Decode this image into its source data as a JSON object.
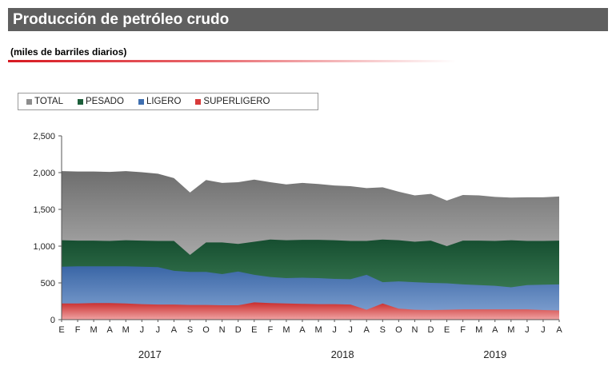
{
  "header": {
    "title": "Producción de petróleo crudo",
    "subtitle": "(miles de barriles diarios)"
  },
  "colors": {
    "total": "#8d8d8d",
    "pesado": "#1c5f3a",
    "ligero": "#3f6fb0",
    "superligero": "#d83a3a"
  },
  "chart_data": {
    "type": "area",
    "title": "Producción de petróleo crudo",
    "ylabel": "",
    "xlabel": "",
    "ylim": [
      0,
      2500
    ],
    "yticks": [
      "0",
      "500",
      "1,000",
      "1,500",
      "2,000",
      "2,500"
    ],
    "categories": [
      "E",
      "F",
      "M",
      "A",
      "M",
      "J",
      "J",
      "A",
      "S",
      "O",
      "N",
      "D",
      "E",
      "F",
      "M",
      "A",
      "M",
      "J",
      "J",
      "A",
      "S",
      "O",
      "N",
      "D",
      "E",
      "F",
      "M",
      "A",
      "M",
      "J",
      "J",
      "A"
    ],
    "years": [
      {
        "label": "2017",
        "center_index": 5.5
      },
      {
        "label": "2018",
        "center_index": 17.5
      },
      {
        "label": "2019",
        "center_index": 27
      }
    ],
    "grid": true,
    "legend_position": "top-left",
    "series": [
      {
        "name": "TOTAL",
        "values": [
          2020,
          2015,
          2015,
          2010,
          2020,
          2005,
          1985,
          1925,
          1730,
          1900,
          1860,
          1870,
          1905,
          1870,
          1840,
          1860,
          1845,
          1825,
          1815,
          1790,
          1800,
          1740,
          1690,
          1710,
          1620,
          1695,
          1690,
          1670,
          1660,
          1665,
          1665,
          1675
        ]
      },
      {
        "name": "PESADO",
        "values": [
          1080,
          1075,
          1075,
          1070,
          1080,
          1075,
          1070,
          1070,
          880,
          1050,
          1050,
          1030,
          1060,
          1090,
          1080,
          1085,
          1085,
          1080,
          1070,
          1070,
          1090,
          1080,
          1060,
          1075,
          1000,
          1075,
          1075,
          1070,
          1080,
          1070,
          1070,
          1075
        ]
      },
      {
        "name": "LIGERO",
        "values": [
          720,
          725,
          725,
          725,
          725,
          720,
          715,
          665,
          650,
          650,
          620,
          655,
          610,
          580,
          565,
          570,
          565,
          555,
          550,
          610,
          510,
          520,
          510,
          500,
          495,
          480,
          470,
          460,
          440,
          470,
          475,
          480
        ]
      },
      {
        "name": "SUPERLIGERO",
        "values": [
          220,
          220,
          225,
          225,
          220,
          210,
          205,
          205,
          200,
          200,
          195,
          195,
          235,
          225,
          220,
          215,
          210,
          210,
          205,
          135,
          220,
          150,
          135,
          130,
          135,
          140,
          140,
          140,
          140,
          140,
          130,
          125
        ]
      }
    ]
  }
}
